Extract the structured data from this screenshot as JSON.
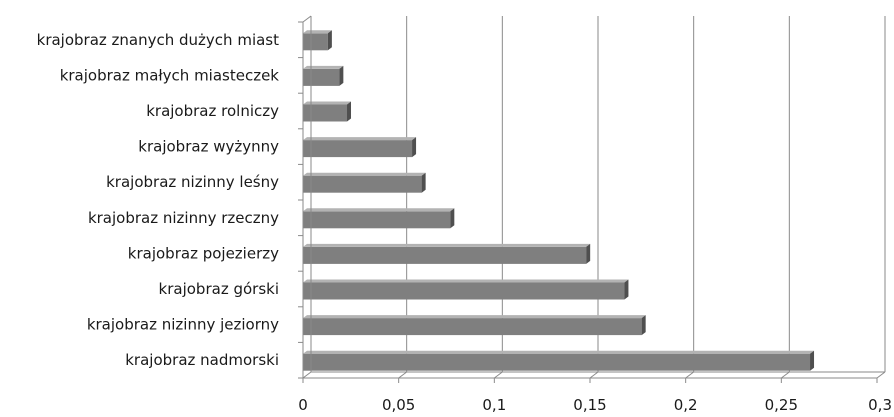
{
  "chart_data": {
    "type": "bar",
    "orientation": "horizontal",
    "style": "3d",
    "categories": [
      "krajobraz znanych dużych miast",
      "krajobraz małych miasteczek",
      "krajobraz rolniczy",
      "krajobraz wyżynny",
      "krajobraz nizinny leśny",
      "krajobraz nizinny rzeczny",
      "krajobraz pojezierzy",
      "krajobraz górski",
      "krajobraz nizinny jeziorny",
      "krajobraz nadmorski"
    ],
    "values": [
      0.013,
      0.019,
      0.023,
      0.057,
      0.062,
      0.077,
      0.148,
      0.168,
      0.177,
      0.265
    ],
    "xlim": [
      0,
      0.3
    ],
    "xticks": [
      0,
      0.05,
      0.1,
      0.15,
      0.2,
      0.25,
      0.3
    ],
    "xtick_labels": [
      "0",
      "0,05",
      "0,1",
      "0,15",
      "0,2",
      "0,25",
      "0,3"
    ],
    "title": "",
    "xlabel": "",
    "ylabel": "",
    "grid": true,
    "legend": "none",
    "colors": {
      "bar_face": "#7f7f7f",
      "bar_top": "#b3b3b3",
      "bar_side": "#4f4f4f",
      "gridline": "#8a8a8a"
    }
  }
}
